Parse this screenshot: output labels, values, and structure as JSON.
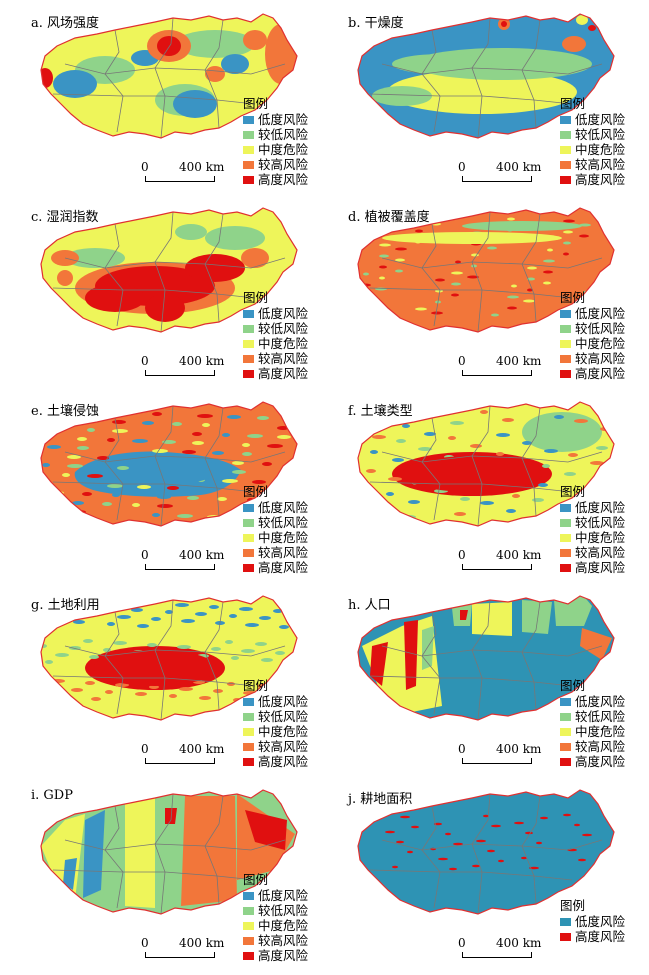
{
  "colors": {
    "low": "#3a94c4",
    "mid_low": "#8fd38a",
    "mid": "#eef55a",
    "mid_high": "#f2763a",
    "high": "#e01010",
    "boundary": "#e03030",
    "province_lines": "#777777",
    "teal_low": "#2e93b4"
  },
  "legend": {
    "title": "图例",
    "items": [
      "低度风险",
      "较低风险",
      "中度危险",
      "较高风险",
      "高度风险"
    ]
  },
  "legend_j": {
    "title": "图例",
    "items": [
      "低度风险",
      "高度风险"
    ]
  },
  "scale": {
    "zero": "0",
    "max": "400 km"
  },
  "panels": [
    {
      "id": "a",
      "title": "a. 风场强度"
    },
    {
      "id": "b",
      "title": "b. 干燥度"
    },
    {
      "id": "c",
      "title": "c. 湿润指数"
    },
    {
      "id": "d",
      "title": "d. 植被覆盖度"
    },
    {
      "id": "e",
      "title": "e. 土壤侵蚀"
    },
    {
      "id": "f",
      "title": "f. 土壤类型"
    },
    {
      "id": "g",
      "title": "g. 土地利用"
    },
    {
      "id": "h",
      "title": "h. 人口"
    },
    {
      "id": "i",
      "title": "i. GDP"
    },
    {
      "id": "j",
      "title": "j. 耕地面积"
    }
  ]
}
